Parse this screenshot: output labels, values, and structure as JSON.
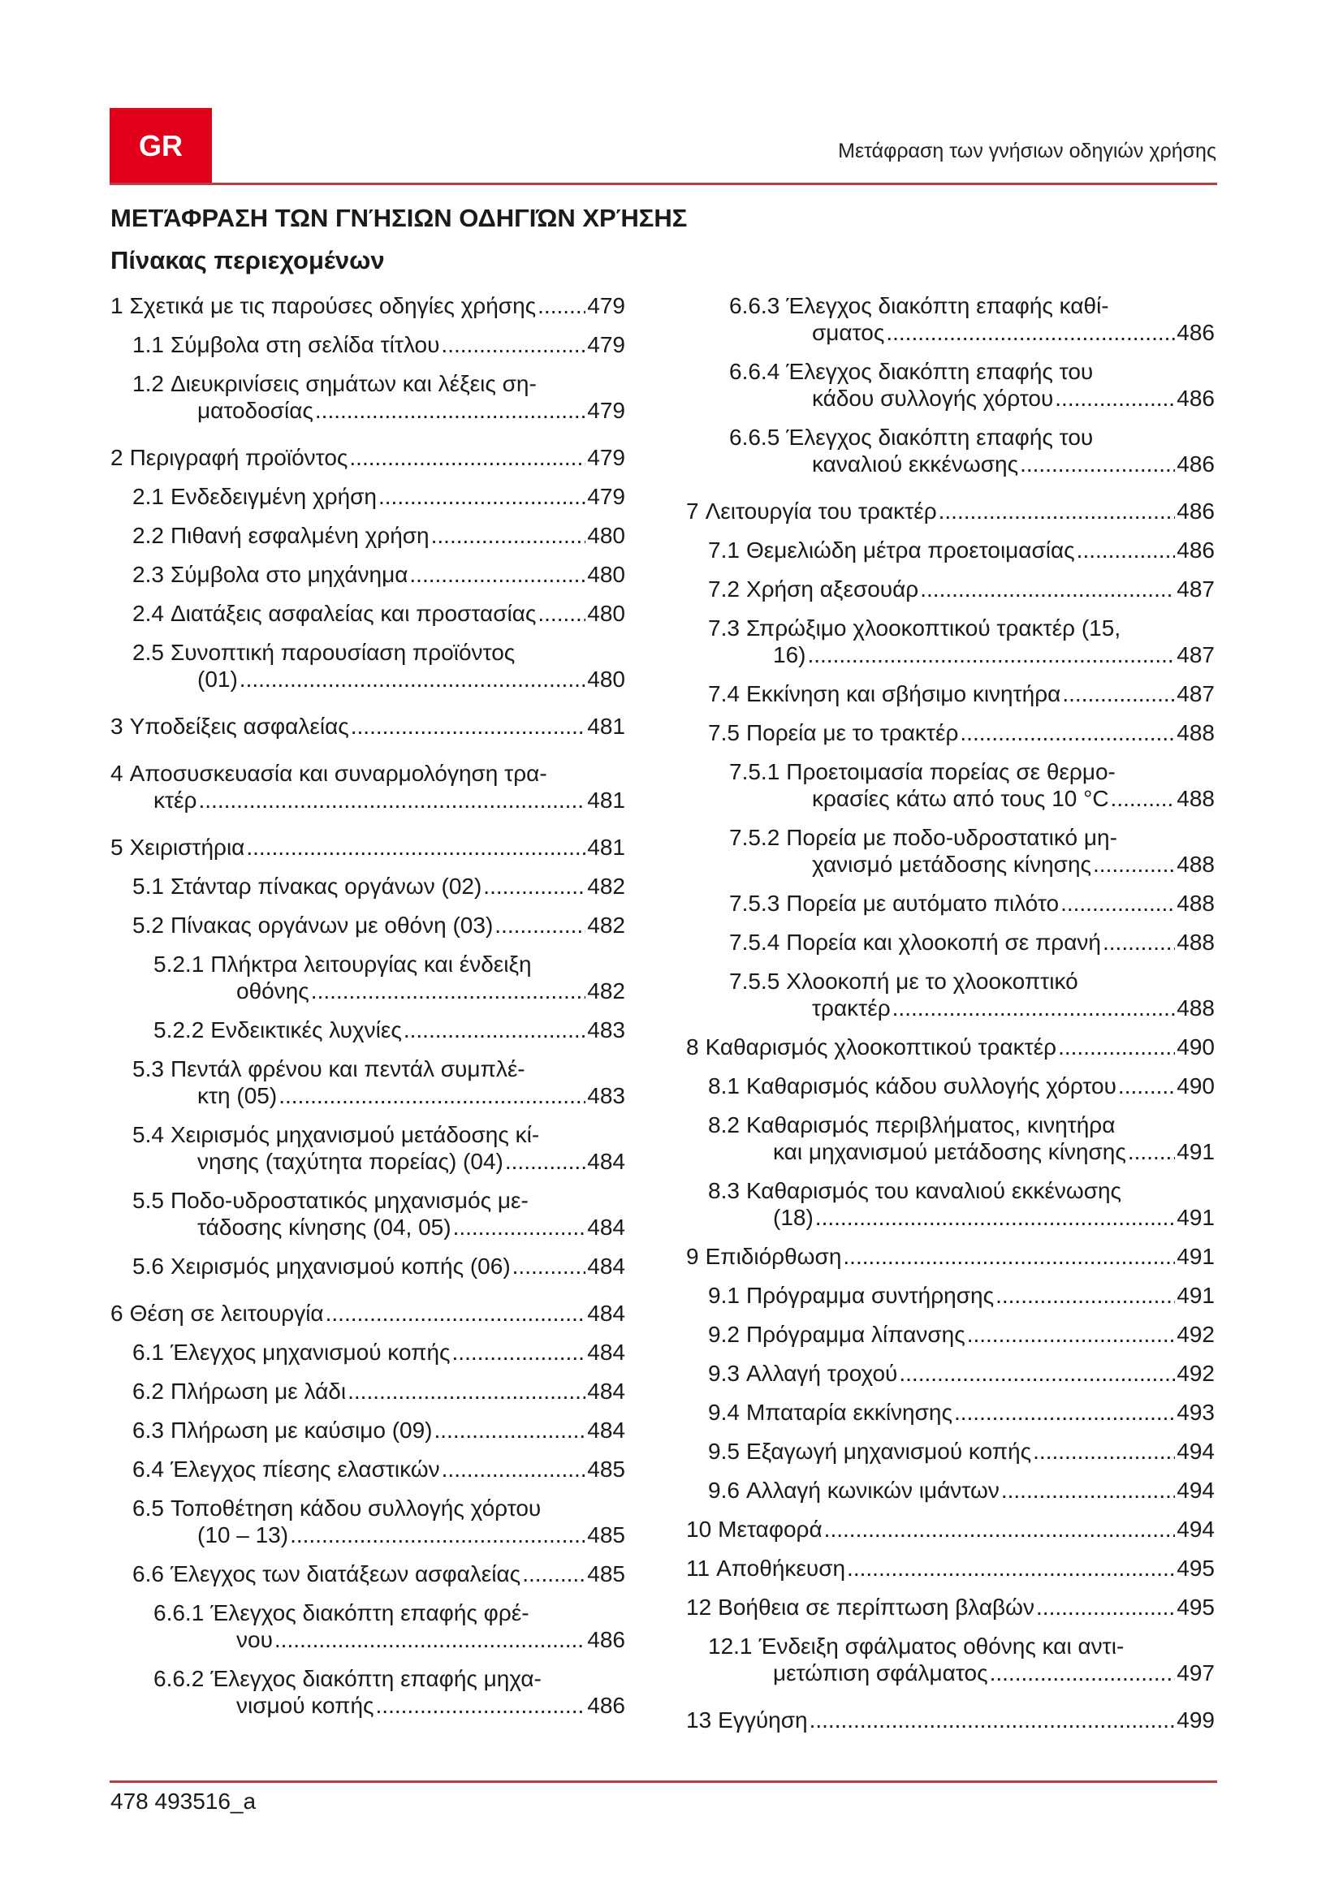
{
  "header": {
    "lang_badge": "GR",
    "running_title": "Μετάφραση των γνήσιων οδηγιών χρήσης"
  },
  "title": "ΜΕΤΆΦΡΑΣΗ ΤΩΝ ΓΝΉΣΙΩΝ ΟΔΗΓΙΏΝ ΧΡΉΣΗΣ",
  "toc_title": "Πίνακας περιεχομένων",
  "colors": {
    "brand_red": "#e2001a",
    "rule": "#b3414a"
  },
  "toc": {
    "left": [
      {
        "level": 1,
        "num": "1",
        "lines": [
          "Σχετικά με τις παρούσες οδηγίες χρήσης"
        ],
        "page": "479"
      },
      {
        "level": 2,
        "num": "1.1",
        "lines": [
          "Σύμβολα στη σελίδα τίτλου"
        ],
        "page": "479"
      },
      {
        "level": 2,
        "num": "1.2",
        "lines": [
          "Διευκρινίσεις σημάτων και λέξεις ση-",
          "ματοδοσίας"
        ],
        "page": "479"
      },
      {
        "level": 1,
        "num": "2",
        "lines": [
          "Περιγραφή προϊόντος"
        ],
        "page": "479"
      },
      {
        "level": 2,
        "num": "2.1",
        "lines": [
          "Ενδεδειγμένη χρήση"
        ],
        "page": "479"
      },
      {
        "level": 2,
        "num": "2.2",
        "lines": [
          "Πιθανή εσφαλμένη χρήση"
        ],
        "page": "480"
      },
      {
        "level": 2,
        "num": "2.3",
        "lines": [
          "Σύμβολα στο μηχάνημα"
        ],
        "page": "480"
      },
      {
        "level": 2,
        "num": "2.4",
        "lines": [
          "Διατάξεις ασφαλείας και προστασίας"
        ],
        "page": "480"
      },
      {
        "level": 2,
        "num": "2.5",
        "lines": [
          "Συνοπτική παρουσίαση προϊόντος",
          "(01)"
        ],
        "page": "480"
      },
      {
        "level": 1,
        "num": "3",
        "lines": [
          "Υποδείξεις ασφαλείας"
        ],
        "page": "481"
      },
      {
        "level": 1,
        "num": "4",
        "lines": [
          "Αποσυσκευασία και συναρμολόγηση τρα-",
          "κτέρ"
        ],
        "page": "481"
      },
      {
        "level": 1,
        "num": "5",
        "lines": [
          "Χειριστήρια"
        ],
        "page": "481"
      },
      {
        "level": 2,
        "num": "5.1",
        "lines": [
          "Στάνταρ πίνακας οργάνων (02)"
        ],
        "page": "482"
      },
      {
        "level": 2,
        "num": "5.2",
        "lines": [
          "Πίνακας οργάνων με οθόνη (03)"
        ],
        "page": "482"
      },
      {
        "level": 3,
        "num": "5.2.1",
        "lines": [
          "Πλήκτρα λειτουργίας και ένδειξη",
          "οθόνης"
        ],
        "page": "482"
      },
      {
        "level": 3,
        "num": "5.2.2",
        "lines": [
          "Ενδεικτικές λυχνίες"
        ],
        "page": "483"
      },
      {
        "level": 2,
        "num": "5.3",
        "lines": [
          "Πεντάλ φρένου και πεντάλ συμπλέ-",
          "κτη (05)"
        ],
        "page": "483"
      },
      {
        "level": 2,
        "num": "5.4",
        "lines": [
          "Χειρισμός μηχανισμού μετάδοσης κί-",
          "νησης (ταχύτητα πορείας) (04)"
        ],
        "page": "484"
      },
      {
        "level": 2,
        "num": "5.5",
        "lines": [
          "Ποδο-υδροστατικός μηχανισμός με-",
          "τάδοσης κίνησης (04, 05)"
        ],
        "page": "484"
      },
      {
        "level": 2,
        "num": "5.6",
        "lines": [
          "Χειρισμός μηχανισμού κοπής (06)"
        ],
        "page": "484"
      },
      {
        "level": 1,
        "num": "6",
        "lines": [
          "Θέση σε λειτουργία"
        ],
        "page": "484"
      },
      {
        "level": 2,
        "num": "6.1",
        "lines": [
          "Έλεγχος μηχανισμού κοπής"
        ],
        "page": "484"
      },
      {
        "level": 2,
        "num": "6.2",
        "lines": [
          "Πλήρωση με λάδι"
        ],
        "page": "484"
      },
      {
        "level": 2,
        "num": "6.3",
        "lines": [
          "Πλήρωση με καύσιμο (09)"
        ],
        "page": "484"
      },
      {
        "level": 2,
        "num": "6.4",
        "lines": [
          "Έλεγχος πίεσης ελαστικών"
        ],
        "page": "485"
      },
      {
        "level": 2,
        "num": "6.5",
        "lines": [
          "Τοποθέτηση κάδου συλλογής χόρτου",
          "(10 – 13)"
        ],
        "page": "485"
      },
      {
        "level": 2,
        "num": "6.6",
        "lines": [
          "Έλεγχος των διατάξεων ασφαλείας"
        ],
        "page": "485"
      },
      {
        "level": 3,
        "num": "6.6.1",
        "lines": [
          "Έλεγχος διακόπτη επαφής φρέ-",
          "νου"
        ],
        "page": "486"
      },
      {
        "level": 3,
        "num": "6.6.2",
        "lines": [
          "Έλεγχος διακόπτη επαφής μηχα-",
          "νισμού κοπής"
        ],
        "page": "486"
      }
    ],
    "right": [
      {
        "level": 3,
        "num": "6.6.3",
        "lines": [
          "Έλεγχος διακόπτη επαφής καθί-",
          "σματος"
        ],
        "page": "486"
      },
      {
        "level": 3,
        "num": "6.6.4",
        "lines": [
          "Έλεγχος διακόπτη επαφής του",
          "κάδου συλλογής χόρτου"
        ],
        "page": "486"
      },
      {
        "level": 3,
        "num": "6.6.5",
        "lines": [
          "Έλεγχος διακόπτη επαφής του",
          "καναλιού εκκένωσης"
        ],
        "page": "486"
      },
      {
        "level": 1,
        "num": "7",
        "lines": [
          "Λειτουργία του τρακτέρ"
        ],
        "page": "486"
      },
      {
        "level": 2,
        "num": "7.1",
        "lines": [
          "Θεμελιώδη μέτρα προετοιμασίας"
        ],
        "page": "486"
      },
      {
        "level": 2,
        "num": "7.2",
        "lines": [
          "Χρήση αξεσουάρ"
        ],
        "page": "487"
      },
      {
        "level": 2,
        "num": "7.3",
        "lines": [
          "Σπρώξιμο χλοοκοπτικού τρακτέρ (15,",
          "16)"
        ],
        "page": "487"
      },
      {
        "level": 2,
        "num": "7.4",
        "lines": [
          "Εκκίνηση και σβήσιμο κινητήρα"
        ],
        "page": "487"
      },
      {
        "level": 2,
        "num": "7.5",
        "lines": [
          "Πορεία με το τρακτέρ"
        ],
        "page": "488"
      },
      {
        "level": 3,
        "num": "7.5.1",
        "lines": [
          "Προετοιμασία πορείας σε θερμο-",
          "κρασίες κάτω από τους 10 °C"
        ],
        "page": "488"
      },
      {
        "level": 3,
        "num": "7.5.2",
        "lines": [
          "Πορεία με ποδο-υδροστατικό μη-",
          "χανισμό μετάδοσης κίνησης"
        ],
        "page": "488"
      },
      {
        "level": 3,
        "num": "7.5.3",
        "lines": [
          "Πορεία με αυτόματο πιλότο"
        ],
        "page": "488"
      },
      {
        "level": 3,
        "num": "7.5.4",
        "lines": [
          "Πορεία και χλοοκοπή σε πρανή"
        ],
        "page": "488"
      },
      {
        "level": 3,
        "num": "7.5.5",
        "lines": [
          "Χλοοκοπή με το χλοοκοπτικό",
          "τρακτέρ"
        ],
        "page": "488"
      },
      {
        "level": 1,
        "num": "8",
        "lines": [
          "Καθαρισμός χλοοκοπτικού τρακτέρ"
        ],
        "page": "490"
      },
      {
        "level": 2,
        "num": "8.1",
        "lines": [
          "Καθαρισμός κάδου συλλογής χόρτου"
        ],
        "page": "490"
      },
      {
        "level": 2,
        "num": "8.2",
        "lines": [
          "Καθαρισμός περιβλήματος, κινητήρα",
          "και μηχανισμού μετάδοσης κίνησης"
        ],
        "page": "491"
      },
      {
        "level": 2,
        "num": "8.3",
        "lines": [
          "Καθαρισμός του καναλιού εκκένωσης",
          "(18)"
        ],
        "page": "491"
      },
      {
        "level": 1,
        "num": "9",
        "lines": [
          "Επιδιόρθωση"
        ],
        "page": "491"
      },
      {
        "level": 2,
        "num": "9.1",
        "lines": [
          "Πρόγραμμα συντήρησης"
        ],
        "page": "491"
      },
      {
        "level": 2,
        "num": "9.2",
        "lines": [
          "Πρόγραμμα λίπανσης"
        ],
        "page": "492"
      },
      {
        "level": 2,
        "num": "9.3",
        "lines": [
          "Αλλαγή τροχού"
        ],
        "page": "492"
      },
      {
        "level": 2,
        "num": "9.4",
        "lines": [
          "Μπαταρία εκκίνησης"
        ],
        "page": "493"
      },
      {
        "level": 2,
        "num": "9.5",
        "lines": [
          "Εξαγωγή μηχανισμού κοπής"
        ],
        "page": "494"
      },
      {
        "level": 2,
        "num": "9.6",
        "lines": [
          "Αλλαγή κωνικών ιμάντων"
        ],
        "page": "494"
      },
      {
        "level": 1,
        "num": "10",
        "lines": [
          "Μεταφορά"
        ],
        "page": "494"
      },
      {
        "level": 1,
        "num": "11",
        "lines": [
          "Αποθήκευση"
        ],
        "page": "495"
      },
      {
        "level": 1,
        "num": "12",
        "lines": [
          "Βοήθεια σε περίπτωση βλαβών"
        ],
        "page": "495"
      },
      {
        "level": 2,
        "num": "12.1",
        "lines": [
          "Ένδειξη σφάλματος οθόνης και αντι-",
          "μετώπιση σφάλματος"
        ],
        "page": "497"
      },
      {
        "level": 1,
        "num": "13",
        "lines": [
          "Εγγύηση"
        ],
        "page": "499"
      }
    ]
  },
  "footer": {
    "page_ref": "478 493516_a"
  }
}
